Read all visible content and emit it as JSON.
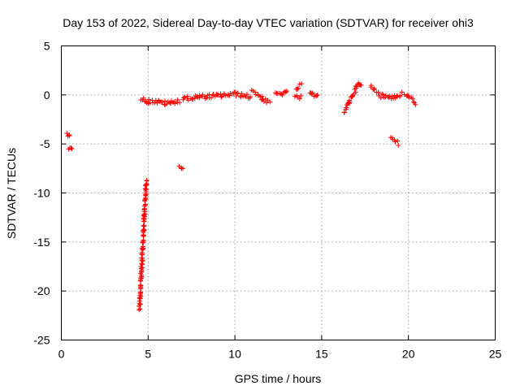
{
  "chart_data": {
    "type": "scatter",
    "title": "Day 153 of 2022, Sidereal Day-to-day VTEC variation (SDTVAR) for receiver ohi3",
    "xlabel": "GPS time / hours",
    "ylabel": "SDTVAR / TECUs",
    "xlim": [
      0,
      25
    ],
    "ylim": [
      -25,
      5
    ],
    "xticks": [
      0,
      5,
      10,
      15,
      20,
      25
    ],
    "yticks": [
      5,
      0,
      -5,
      -10,
      -15,
      -20,
      -25
    ],
    "grid": true,
    "marker": "+",
    "color": "#ff0000",
    "segments": [
      {
        "x": [
          0.3,
          0.5
        ],
        "y": [
          -4.0,
          -4.0
        ]
      },
      {
        "x": [
          0.4,
          0.6
        ],
        "y": [
          -5.4,
          -5.6
        ]
      },
      {
        "x": [
          4.5,
          4.9
        ],
        "y": [
          -21.8,
          -8.6
        ]
      },
      {
        "x": [
          4.6,
          5.0
        ],
        "y": [
          -0.4,
          -0.7
        ]
      },
      {
        "x": [
          5.0,
          6.0
        ],
        "y": [
          -0.6,
          -0.8
        ]
      },
      {
        "x": [
          6.0,
          6.8
        ],
        "y": [
          -0.9,
          -0.6
        ]
      },
      {
        "x": [
          6.8,
          7.0
        ],
        "y": [
          -7.3,
          -7.5
        ]
      },
      {
        "x": [
          7.0,
          8.0
        ],
        "y": [
          -0.4,
          -0.2
        ]
      },
      {
        "x": [
          8.0,
          9.0
        ],
        "y": [
          -0.2,
          -0.1
        ]
      },
      {
        "x": [
          9.0,
          10.0
        ],
        "y": [
          -0.1,
          0.1
        ]
      },
      {
        "x": [
          10.0,
          10.9
        ],
        "y": [
          0.1,
          -0.2
        ]
      },
      {
        "x": [
          11.0,
          11.5
        ],
        "y": [
          0.5,
          -0.3
        ]
      },
      {
        "x": [
          11.5,
          12.0
        ],
        "y": [
          -0.3,
          -0.8
        ]
      },
      {
        "x": [
          12.3,
          13.0
        ],
        "y": [
          0.1,
          0.2
        ]
      },
      {
        "x": [
          13.5,
          13.8
        ],
        "y": [
          0.6,
          1.0
        ]
      },
      {
        "x": [
          13.5,
          13.8
        ],
        "y": [
          -0.2,
          -0.3
        ]
      },
      {
        "x": [
          14.3,
          14.8
        ],
        "y": [
          0.0,
          0.1
        ]
      },
      {
        "x": [
          16.3,
          16.6
        ],
        "y": [
          -1.8,
          -0.6
        ]
      },
      {
        "x": [
          16.6,
          17.1
        ],
        "y": [
          -0.6,
          1.1
        ]
      },
      {
        "x": [
          17.1,
          17.3
        ],
        "y": [
          1.1,
          0.9
        ]
      },
      {
        "x": [
          17.8,
          18.3
        ],
        "y": [
          0.9,
          0.3
        ]
      },
      {
        "x": [
          18.3,
          19.2
        ],
        "y": [
          -0.1,
          -0.2
        ]
      },
      {
        "x": [
          19.2,
          19.6
        ],
        "y": [
          -0.2,
          0.1
        ]
      },
      {
        "x": [
          19.0,
          19.4
        ],
        "y": [
          -4.3,
          -5.0
        ]
      },
      {
        "x": [
          19.8,
          20.4
        ],
        "y": [
          0.1,
          -0.8
        ]
      }
    ]
  }
}
